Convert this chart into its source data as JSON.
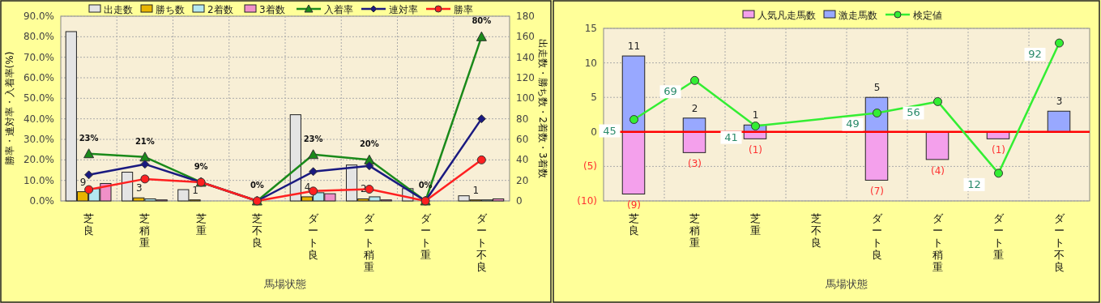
{
  "chart_data": [
    {
      "type": "bar",
      "categories": [
        "芝良",
        "芝稍重",
        "芝重",
        "芝不良",
        "ダート良",
        "ダート稍重",
        "ダート重",
        "ダート不良"
      ],
      "xlabel": "馬場状態",
      "ylabel": "勝率・連対率・入着率(%)",
      "y2label": "出走数・勝ち数・2着数・3着数",
      "ylim": [
        0,
        90
      ],
      "yticks": [
        {
          "value": 0,
          "label": "0.0%"
        },
        {
          "value": 10,
          "label": "10.0%"
        },
        {
          "value": 20,
          "label": "20.0%"
        },
        {
          "value": 30,
          "label": "30.0%"
        },
        {
          "value": 40,
          "label": "40.0%"
        },
        {
          "value": 50,
          "label": "50.0%"
        },
        {
          "value": 60,
          "label": "60.0%"
        },
        {
          "value": 70,
          "label": "70.0%"
        },
        {
          "value": 80,
          "label": "80.0%"
        },
        {
          "value": 90,
          "label": "90.0%"
        }
      ],
      "y2lim": [
        0,
        180
      ],
      "y2ticks": [
        0,
        20,
        40,
        60,
        80,
        100,
        120,
        140,
        160,
        180
      ],
      "grid": true,
      "legend": "top",
      "series": [
        {
          "name": "出走数",
          "axis": "y2",
          "color": "#e4e4e4",
          "values": [
            165,
            28,
            11,
            0,
            84,
            35,
            12,
            5
          ]
        },
        {
          "name": "勝ち数",
          "axis": "y2",
          "color": "#e8b400",
          "values": [
            9,
            3,
            1,
            0,
            4,
            2,
            0,
            1
          ],
          "value_labels": [
            "9",
            "3",
            "1",
            null,
            "4",
            "2",
            null,
            "1"
          ]
        },
        {
          "name": "2着数",
          "axis": "y2",
          "color": "#b4e8f0",
          "values": [
            12,
            2,
            0,
            0,
            8,
            4,
            0,
            1
          ]
        },
        {
          "name": "3着数",
          "axis": "y2",
          "color": "#f090c8",
          "values": [
            17,
            1,
            0,
            0,
            7,
            1,
            0,
            2
          ]
        },
        {
          "name": "入着率",
          "type": "line",
          "marker": "triangle",
          "color": "#1a8a1a",
          "values": [
            23.0,
            21.4,
            9.1,
            0,
            22.6,
            20.0,
            0,
            80
          ],
          "value_labels": [
            "23%",
            "21%",
            "9%",
            "0%",
            "23%",
            "20%",
            "0%",
            "80%"
          ]
        },
        {
          "name": "連対率",
          "type": "line",
          "marker": "diamond",
          "color": "#1a1a80",
          "values": [
            12.7,
            17.9,
            9.1,
            0,
            14.3,
            17.1,
            0,
            40
          ]
        },
        {
          "name": "勝率",
          "type": "line",
          "marker": "circle",
          "color": "#ff2020",
          "values": [
            5.5,
            10.7,
            9.1,
            0,
            4.8,
            5.7,
            0,
            20
          ]
        }
      ]
    },
    {
      "type": "bar",
      "stacked": true,
      "categories": [
        "芝良",
        "芝稍重",
        "芝重",
        "芝不良",
        "ダート良",
        "ダート稍重",
        "ダート重",
        "ダート不良"
      ],
      "xlabel": "馬場状態",
      "ylim": [
        -10,
        15
      ],
      "yticks": [
        {
          "value": -10,
          "label": "(10)"
        },
        {
          "value": -5,
          "label": "(5)"
        },
        0,
        5,
        10,
        15
      ],
      "y2lim": [
        -5,
        101
      ],
      "grid": true,
      "legend": "top",
      "ref_lines": [
        {
          "axis": "y",
          "value": 0,
          "color": "#ff0000"
        }
      ],
      "series": [
        {
          "name": "人気凡走馬数",
          "color": "#f4a0ec",
          "values": [
            -9,
            -3,
            -1,
            0,
            -7,
            -4,
            -1,
            0
          ],
          "value_labels": [
            "(9)",
            "(3)",
            "(1)",
            null,
            "(7)",
            "(4)",
            "(1)",
            null
          ]
        },
        {
          "name": "激走馬数",
          "color": "#98a8ff",
          "values": [
            11,
            2,
            1,
            0,
            5,
            0,
            0,
            3
          ],
          "value_labels": [
            "11",
            "2",
            "1",
            null,
            "5",
            null,
            null,
            "3"
          ]
        },
        {
          "name": "検定値",
          "type": "line",
          "axis": "y2",
          "marker": "circle",
          "color": "#33ee33",
          "values": [
            45,
            69,
            41,
            null,
            49,
            56,
            12,
            92
          ],
          "value_labels": [
            "45",
            "69",
            "41",
            null,
            "49",
            "56",
            "12",
            "92"
          ]
        }
      ]
    }
  ]
}
